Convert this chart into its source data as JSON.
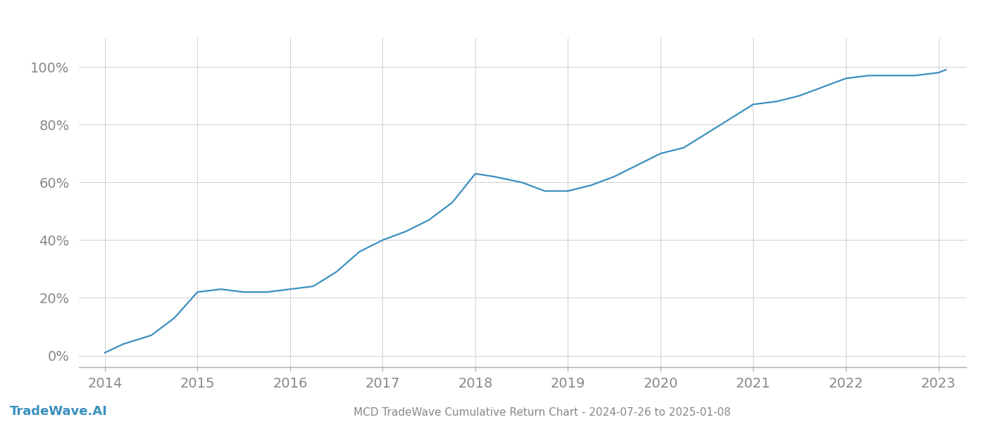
{
  "title": "MCD TradeWave Cumulative Return Chart - 2024-07-26 to 2025-01-08",
  "watermark": "TradeWave.AI",
  "line_color": "#3a8fbf",
  "background_color": "#ffffff",
  "grid_color": "#d0d0d0",
  "x_values": [
    2014.0,
    2014.2,
    2014.5,
    2014.75,
    2015.0,
    2015.25,
    2015.5,
    2015.75,
    2016.0,
    2016.25,
    2016.5,
    2016.75,
    2017.0,
    2017.25,
    2017.5,
    2017.75,
    2018.0,
    2018.2,
    2018.5,
    2018.75,
    2019.0,
    2019.25,
    2019.5,
    2019.75,
    2020.0,
    2020.25,
    2020.5,
    2020.75,
    2021.0,
    2021.25,
    2021.5,
    2021.75,
    2022.0,
    2022.25,
    2022.5,
    2022.75,
    2023.0,
    2023.08
  ],
  "y_values": [
    0.01,
    0.04,
    0.07,
    0.13,
    0.22,
    0.23,
    0.22,
    0.22,
    0.23,
    0.24,
    0.29,
    0.36,
    0.4,
    0.43,
    0.47,
    0.53,
    0.63,
    0.62,
    0.6,
    0.57,
    0.57,
    0.59,
    0.62,
    0.66,
    0.7,
    0.72,
    0.77,
    0.82,
    0.87,
    0.88,
    0.9,
    0.93,
    0.96,
    0.97,
    0.97,
    0.97,
    0.98,
    0.99
  ],
  "x_ticks": [
    2014,
    2015,
    2016,
    2017,
    2018,
    2019,
    2020,
    2021,
    2022,
    2023
  ],
  "y_ticks": [
    0.0,
    0.2,
    0.4,
    0.6,
    0.8,
    1.0
  ],
  "y_tick_labels": [
    "0%",
    "20%",
    "40%",
    "60%",
    "80%",
    "100%"
  ],
  "xlim": [
    2013.72,
    2023.3
  ],
  "ylim": [
    -0.04,
    1.1
  ],
  "line_width": 1.6,
  "tick_fontsize": 14,
  "title_fontsize": 11,
  "watermark_fontsize": 13
}
